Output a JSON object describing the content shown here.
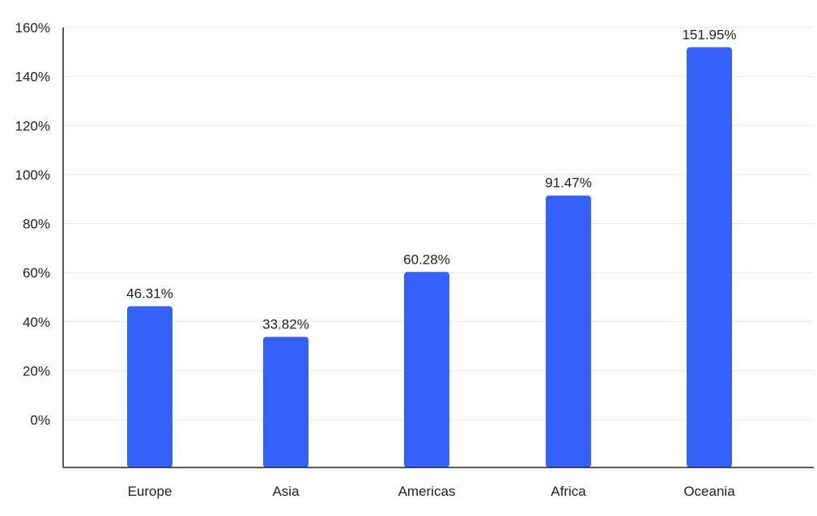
{
  "chart_data": {
    "type": "bar",
    "title": "",
    "xlabel": "",
    "ylabel": "",
    "categories": [
      "Europe",
      "Asia",
      "Americas",
      "Africa",
      "Oceania"
    ],
    "values": [
      46.31,
      33.82,
      60.28,
      91.47,
      151.95
    ],
    "value_labels": [
      "46.31%",
      "33.82%",
      "60.28%",
      "91.47%",
      "151.95%"
    ],
    "y_ticks": [
      0,
      20,
      40,
      60,
      80,
      100,
      120,
      140,
      160
    ],
    "y_tick_labels": [
      "0%",
      "20%",
      "40%",
      "60%",
      "80%",
      "100%",
      "120%",
      "140%",
      "160%"
    ],
    "ylim": [
      0,
      160
    ],
    "grid": true,
    "legend": "none",
    "colors": {
      "bar": "#3561fb",
      "grid": "#e6e6e6",
      "axis": "#222222",
      "text": "#222222"
    }
  }
}
